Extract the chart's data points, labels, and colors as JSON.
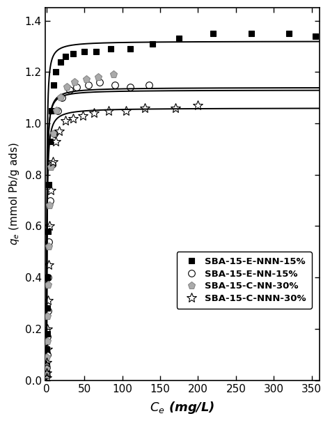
{
  "title": "",
  "xlabel": "$C_e$ (mg/L)",
  "ylabel": "$q_e$ (mmol Pb/g ads)",
  "xlim": [
    -2,
    360
  ],
  "ylim": [
    0.0,
    1.45
  ],
  "xticks": [
    0,
    50,
    100,
    150,
    200,
    250,
    300,
    350
  ],
  "yticks": [
    0.0,
    0.2,
    0.4,
    0.6,
    0.8,
    1.0,
    1.2,
    1.4
  ],
  "series": [
    {
      "label": "SBA-15-E-NNN-15%",
      "marker": "s",
      "fillstyle": "full",
      "markercolor": "black",
      "markersize": 6,
      "data_x": [
        0.1,
        0.2,
        0.4,
        0.6,
        0.9,
        1.3,
        2.0,
        3.0,
        4.5,
        6.5,
        9,
        12,
        18,
        25,
        35,
        50,
        65,
        85,
        110,
        140,
        175,
        220,
        270,
        320,
        355
      ],
      "data_y": [
        0.03,
        0.06,
        0.12,
        0.18,
        0.28,
        0.4,
        0.58,
        0.76,
        0.93,
        1.05,
        1.15,
        1.2,
        1.24,
        1.26,
        1.27,
        1.28,
        1.28,
        1.29,
        1.29,
        1.31,
        1.33,
        1.35,
        1.35,
        1.35,
        1.34
      ],
      "langmuir_qmax": 1.32,
      "langmuir_KL": 2.5
    },
    {
      "label": "SBA-15-E-NN-15%",
      "marker": "o",
      "fillstyle": "none",
      "markercolor": "black",
      "markersize": 7,
      "data_x": [
        0.1,
        0.3,
        0.6,
        1.0,
        1.5,
        2.2,
        3.2,
        4.8,
        7.0,
        10,
        15,
        20,
        30,
        40,
        55,
        70,
        90,
        110,
        135
      ],
      "data_y": [
        0.02,
        0.05,
        0.1,
        0.17,
        0.27,
        0.4,
        0.54,
        0.7,
        0.84,
        0.96,
        1.05,
        1.1,
        1.13,
        1.14,
        1.15,
        1.16,
        1.15,
        1.14,
        1.15
      ],
      "langmuir_qmax": 1.14,
      "langmuir_KL": 2.0
    },
    {
      "label": "SBA-15-C-NN-30%",
      "marker": "p",
      "fillstyle": "full",
      "markercolor": "gray",
      "markersize": 8,
      "data_x": [
        0.1,
        0.3,
        0.5,
        0.8,
        1.2,
        1.8,
        2.6,
        4.0,
        6.0,
        9,
        13,
        18,
        27,
        37,
        52,
        68,
        88
      ],
      "data_y": [
        0.02,
        0.05,
        0.09,
        0.15,
        0.25,
        0.37,
        0.52,
        0.68,
        0.83,
        0.96,
        1.05,
        1.1,
        1.14,
        1.16,
        1.17,
        1.18,
        1.19
      ],
      "langmuir_qmax": 1.13,
      "langmuir_KL": 2.2
    },
    {
      "label": "SBA-15-C-NNN-30%",
      "marker": "o",
      "fillstyle": "none",
      "markercolor": "black",
      "markersize": 10,
      "use_star": true,
      "data_x": [
        0.1,
        0.2,
        0.4,
        0.7,
        1.1,
        1.6,
        2.4,
        3.6,
        5.5,
        8,
        12,
        17,
        25,
        35,
        48,
        63,
        82,
        105,
        130,
        170,
        200
      ],
      "data_y": [
        0.01,
        0.03,
        0.07,
        0.12,
        0.2,
        0.31,
        0.45,
        0.6,
        0.74,
        0.85,
        0.93,
        0.97,
        1.01,
        1.02,
        1.03,
        1.04,
        1.05,
        1.05,
        1.06,
        1.06,
        1.07
      ],
      "langmuir_qmax": 1.06,
      "langmuir_KL": 1.8
    }
  ],
  "background_color": "white",
  "fontsize": 12,
  "tick_fontsize": 11,
  "legend_fontsize": 9.5
}
